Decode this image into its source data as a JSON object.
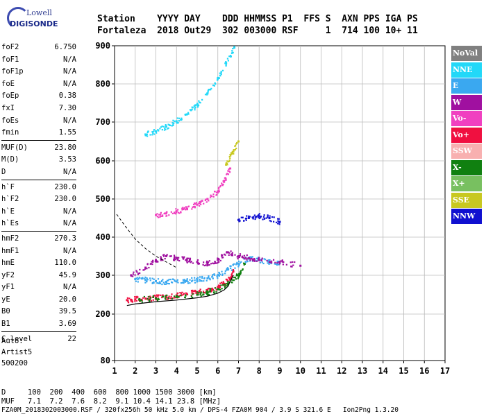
{
  "logo": {
    "top": "Lowell",
    "bottom": "DIGISONDE"
  },
  "header": {
    "line1": "Station    YYYY DAY    DDD HHMMSS P1  FFS S  AXN PPS IGA PS",
    "line2": "Fortaleza  2018 Out29  302 003000 RSF     1  714 100 10+ 11"
  },
  "params_group1": [
    {
      "label": "foF2",
      "value": "6.750"
    },
    {
      "label": "foF1",
      "value": "N/A"
    },
    {
      "label": "foF1p",
      "value": "N/A"
    },
    {
      "label": "foE",
      "value": "N/A"
    },
    {
      "label": "foEp",
      "value": "0.38"
    },
    {
      "label": "fxI",
      "value": "7.30"
    },
    {
      "label": "foEs",
      "value": "N/A"
    },
    {
      "label": "fmin",
      "value": "1.55"
    }
  ],
  "params_group2": [
    {
      "label": "MUF(D)",
      "value": "23.80"
    },
    {
      "label": "M(D)",
      "value": "3.53"
    },
    {
      "label": "D",
      "value": "N/A"
    }
  ],
  "params_group3": [
    {
      "label": "h`F",
      "value": "230.0"
    },
    {
      "label": "h`F2",
      "value": "230.0"
    },
    {
      "label": "h`E",
      "value": "N/A"
    },
    {
      "label": "h`Es",
      "value": "N/A"
    }
  ],
  "params_group4": [
    {
      "label": "hmF2",
      "value": "270.3"
    },
    {
      "label": "hmF1",
      "value": "N/A"
    },
    {
      "label": "hmE",
      "value": "110.0"
    },
    {
      "label": "yF2",
      "value": "45.9"
    },
    {
      "label": "yF1",
      "value": "N/A"
    },
    {
      "label": "yE",
      "value": "20.0"
    },
    {
      "label": "B0",
      "value": "39.5"
    },
    {
      "label": "B1",
      "value": "3.69"
    }
  ],
  "clevel": {
    "label": "C-level",
    "value": "22"
  },
  "auto": {
    "l1": "Auto:",
    "l2": "Artist5",
    "l3": "500200"
  },
  "legend": [
    {
      "label": "NoVal",
      "color": "#808080"
    },
    {
      "label": "NNE",
      "color": "#22d8f8"
    },
    {
      "label": "E",
      "color": "#3aa8f0"
    },
    {
      "label": "W",
      "color": "#a010a0"
    },
    {
      "label": "Vo-",
      "color": "#f040c0"
    },
    {
      "label": "Vo+",
      "color": "#f01040"
    },
    {
      "label": "SSW",
      "color": "#f8b0b0"
    },
    {
      "label": "X-",
      "color": "#108010"
    },
    {
      "label": "X+",
      "color": "#78c060"
    },
    {
      "label": "SSE",
      "color": "#c8c820"
    },
    {
      "label": "NNW",
      "color": "#1010d0"
    }
  ],
  "footer": {
    "d_line": "D     100  200  400  600  800 1000 1500 3000 [km]",
    "muf_line": "MUF   7.1  7.2  7.6  8.2  9.1 10.4 14.1 23.8 [MHz]",
    "file_line": "FZA0M_2018302003000.RSF / 320fx256h 50 kHz 5.0 km / DPS-4 FZA0M 904 / 3.9 S 321.6 E   Ion2Png 1.3.20"
  },
  "chart_data": {
    "type": "scatter",
    "xlim": [
      1,
      17
    ],
    "ylim": [
      80,
      900
    ],
    "x_ticks": [
      1,
      2,
      3,
      4,
      5,
      6,
      7,
      8,
      9,
      10,
      11,
      12,
      13,
      14,
      15,
      16,
      17
    ],
    "y_ticks": [
      80,
      200,
      300,
      400,
      500,
      600,
      700,
      800,
      900
    ],
    "grid": true,
    "legend_position": "right",
    "series": [
      {
        "name": "Vo+",
        "x": [
          1.6,
          2,
          2.5,
          3,
          3.5,
          4,
          4.5,
          5,
          5.5,
          6,
          6.3,
          6.6,
          6.75
        ],
        "y": [
          236,
          238,
          240,
          242,
          245,
          248,
          252,
          256,
          262,
          270,
          278,
          292,
          310
        ]
      },
      {
        "name": "X-",
        "x": [
          2.2,
          3,
          4,
          5,
          5.5,
          6,
          6.5,
          7,
          7.3
        ],
        "y": [
          238,
          240,
          244,
          250,
          256,
          264,
          278,
          300,
          330
        ]
      },
      {
        "name": "E",
        "x": [
          2,
          2.5,
          3,
          3.5,
          4,
          4.5,
          5,
          5.5,
          6,
          6.5,
          7,
          7.5,
          8,
          8.5,
          9
        ],
        "y": [
          290,
          288,
          285,
          283,
          284,
          286,
          288,
          292,
          300,
          315,
          330,
          345,
          340,
          335,
          332
        ]
      },
      {
        "name": "W",
        "x": [
          1.8,
          2.5,
          3,
          3.5,
          4,
          4.5,
          5,
          5.5,
          6,
          6.5,
          7,
          7.5,
          8,
          9,
          10
        ],
        "y": [
          300,
          320,
          340,
          350,
          345,
          340,
          335,
          330,
          340,
          360,
          350,
          345,
          340,
          335,
          325
        ]
      },
      {
        "name": "Vo-",
        "x": [
          3,
          3.5,
          4,
          4.5,
          5,
          5.5,
          6,
          6.3,
          6.6
        ],
        "y": [
          458,
          462,
          468,
          475,
          485,
          500,
          520,
          545,
          580
        ]
      },
      {
        "name": "NNE",
        "x": [
          2.5,
          3,
          3.5,
          4,
          4.5,
          5,
          5.5,
          6,
          6.4,
          6.8
        ],
        "y": [
          668,
          676,
          688,
          702,
          720,
          745,
          775,
          815,
          855,
          895
        ]
      },
      {
        "name": "NNW",
        "x": [
          7,
          7.5,
          8,
          8.5,
          9
        ],
        "y": [
          445,
          450,
          455,
          450,
          440
        ]
      },
      {
        "name": "SSE",
        "x": [
          6.4,
          6.7,
          7
        ],
        "y": [
          590,
          620,
          650
        ]
      }
    ],
    "model_profile": {
      "x": [
        1.6,
        2,
        3,
        4,
        5,
        5.5,
        6,
        6.3,
        6.5,
        6.6,
        6.75
      ],
      "y": [
        222,
        226,
        232,
        236,
        242,
        246,
        254,
        262,
        272,
        285,
        300
      ]
    },
    "dashed_curve": {
      "x": [
        1.1,
        1.5,
        2,
        2.5,
        3,
        3.5,
        4
      ],
      "y": [
        460,
        430,
        395,
        370,
        350,
        335,
        320
      ]
    }
  }
}
